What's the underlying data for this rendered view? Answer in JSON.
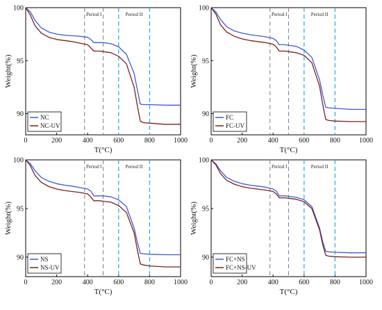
{
  "colors": {
    "blue_series": "#3b5bd6",
    "red_series": "#7a1f1f",
    "period_I_line": "#808080",
    "period_II_line": "#35aee0"
  },
  "chart_data": [
    {
      "type": "line",
      "xlabel": "T(°C)",
      "ylabel": "Weight(%)",
      "xlim": [
        0,
        1000
      ],
      "ylim": [
        88,
        100
      ],
      "xticks": [
        0,
        200,
        400,
        600,
        800,
        1000
      ],
      "yticks": [
        90,
        95,
        100
      ],
      "grid": false,
      "legend_position": "bottom-left",
      "period_labels": [
        "Period I",
        "Period II"
      ],
      "period_I_lines": [
        380,
        500
      ],
      "period_II_lines": [
        600,
        800
      ],
      "series": [
        {
          "name": "NC",
          "color": "blue",
          "x": [
            0,
            30,
            60,
            100,
            150,
            200,
            250,
            300,
            350,
            400,
            420,
            440,
            480,
            500,
            550,
            600,
            650,
            700,
            720,
            740,
            760,
            800,
            900,
            1000
          ],
          "values": [
            100,
            99.6,
            98.8,
            98.1,
            97.7,
            97.5,
            97.4,
            97.35,
            97.3,
            97.2,
            97.0,
            96.7,
            96.7,
            96.7,
            96.6,
            96.3,
            95.6,
            93.8,
            92.3,
            90.9,
            90.85,
            90.85,
            90.8,
            90.8
          ]
        },
        {
          "name": "NC-UV",
          "color": "red",
          "x": [
            0,
            30,
            60,
            100,
            150,
            200,
            250,
            300,
            350,
            400,
            420,
            440,
            480,
            500,
            550,
            600,
            650,
            700,
            720,
            740,
            760,
            800,
            900,
            1000
          ],
          "values": [
            100,
            99.3,
            98.3,
            97.6,
            97.2,
            97.0,
            96.9,
            96.8,
            96.65,
            96.5,
            96.2,
            95.9,
            95.9,
            95.85,
            95.75,
            95.4,
            94.7,
            92.5,
            90.8,
            89.3,
            89.15,
            89.1,
            89.0,
            89.0
          ]
        }
      ]
    },
    {
      "type": "line",
      "xlabel": "T(°C)",
      "ylabel": "Weight(%)",
      "xlim": [
        0,
        1000
      ],
      "ylim": [
        88,
        100
      ],
      "xticks": [
        0,
        200,
        400,
        600,
        800,
        1000
      ],
      "yticks": [
        90,
        95,
        100
      ],
      "grid": false,
      "legend_position": "bottom-left",
      "period_labels": [
        "Period I",
        "Period II"
      ],
      "period_I_lines": [
        380,
        500
      ],
      "period_II_lines": [
        600,
        800
      ],
      "series": [
        {
          "name": "FC",
          "color": "blue",
          "x": [
            0,
            30,
            60,
            100,
            150,
            200,
            250,
            300,
            350,
            400,
            420,
            440,
            480,
            500,
            550,
            600,
            650,
            700,
            720,
            740,
            760,
            800,
            900,
            1000
          ],
          "values": [
            100,
            99.6,
            98.9,
            98.2,
            97.8,
            97.6,
            97.45,
            97.35,
            97.25,
            97.1,
            96.9,
            96.5,
            96.5,
            96.45,
            96.35,
            96.0,
            95.3,
            93.2,
            91.8,
            90.6,
            90.55,
            90.5,
            90.4,
            90.4
          ]
        },
        {
          "name": "FC-UV",
          "color": "red",
          "x": [
            0,
            30,
            60,
            100,
            150,
            200,
            250,
            300,
            350,
            400,
            420,
            440,
            480,
            500,
            550,
            600,
            650,
            700,
            720,
            740,
            760,
            800,
            900,
            1000
          ],
          "values": [
            100,
            99.4,
            98.4,
            97.7,
            97.3,
            97.05,
            96.9,
            96.8,
            96.7,
            96.55,
            96.3,
            95.9,
            95.9,
            95.85,
            95.75,
            95.5,
            94.8,
            92.6,
            90.9,
            89.45,
            89.35,
            89.3,
            89.25,
            89.25
          ]
        }
      ]
    },
    {
      "type": "line",
      "xlabel": "T(°C)",
      "ylabel": "Weight(%)",
      "xlim": [
        0,
        1000
      ],
      "ylim": [
        88,
        100
      ],
      "xticks": [
        0,
        200,
        400,
        600,
        800,
        1000
      ],
      "yticks": [
        90,
        95,
        100
      ],
      "grid": false,
      "legend_position": "bottom-left",
      "period_labels": [
        "Period I",
        "Period II"
      ],
      "period_I_lines": [
        380,
        500
      ],
      "period_II_lines": [
        600,
        800
      ],
      "series": [
        {
          "name": "NS",
          "color": "blue",
          "x": [
            0,
            30,
            60,
            100,
            150,
            200,
            250,
            300,
            350,
            400,
            420,
            440,
            480,
            500,
            550,
            600,
            650,
            700,
            720,
            740,
            760,
            800,
            900,
            1000
          ],
          "values": [
            100,
            99.6,
            98.9,
            98.2,
            97.8,
            97.55,
            97.4,
            97.3,
            97.15,
            97.0,
            96.8,
            96.3,
            96.3,
            96.3,
            96.2,
            95.9,
            95.2,
            93.0,
            91.6,
            90.4,
            90.35,
            90.3,
            90.25,
            90.25
          ]
        },
        {
          "name": "NS-UV",
          "color": "red",
          "x": [
            0,
            30,
            60,
            100,
            150,
            200,
            250,
            300,
            350,
            400,
            420,
            440,
            480,
            500,
            550,
            600,
            650,
            700,
            720,
            740,
            760,
            800,
            900,
            1000
          ],
          "values": [
            100,
            99.4,
            98.4,
            97.7,
            97.25,
            97.0,
            96.85,
            96.75,
            96.65,
            96.5,
            96.2,
            95.8,
            95.8,
            95.75,
            95.65,
            95.3,
            94.6,
            92.5,
            90.8,
            89.3,
            89.2,
            89.1,
            89.0,
            89.0
          ]
        }
      ]
    },
    {
      "type": "line",
      "xlabel": "T(°C)",
      "ylabel": "Weight(%)",
      "xlim": [
        0,
        1000
      ],
      "ylim": [
        88,
        100
      ],
      "xticks": [
        0,
        200,
        400,
        600,
        800,
        1000
      ],
      "yticks": [
        90,
        95,
        100
      ],
      "grid": false,
      "legend_position": "bottom-left",
      "period_labels": [
        "Period I",
        "Period II"
      ],
      "period_I_lines": [
        380,
        500
      ],
      "period_II_lines": [
        600,
        800
      ],
      "series": [
        {
          "name": "FC+NS",
          "color": "blue",
          "x": [
            0,
            30,
            60,
            100,
            150,
            200,
            250,
            300,
            350,
            400,
            420,
            440,
            480,
            500,
            550,
            600,
            650,
            700,
            720,
            740,
            760,
            800,
            900,
            1000
          ],
          "values": [
            100,
            99.6,
            98.9,
            98.2,
            97.8,
            97.55,
            97.4,
            97.3,
            97.2,
            97.0,
            96.8,
            96.3,
            96.3,
            96.25,
            96.15,
            95.9,
            95.2,
            93.0,
            91.6,
            90.6,
            90.55,
            90.5,
            90.45,
            90.45
          ]
        },
        {
          "name": "FC+NS-UV",
          "color": "red",
          "x": [
            0,
            30,
            60,
            100,
            150,
            200,
            250,
            300,
            350,
            400,
            420,
            440,
            480,
            500,
            550,
            600,
            650,
            700,
            720,
            740,
            760,
            800,
            900,
            1000
          ],
          "values": [
            100,
            99.5,
            98.6,
            97.9,
            97.5,
            97.25,
            97.1,
            97.0,
            96.9,
            96.75,
            96.5,
            96.1,
            96.1,
            96.05,
            95.95,
            95.7,
            95.0,
            92.8,
            91.3,
            90.2,
            90.1,
            90.05,
            90.0,
            90.0
          ]
        }
      ]
    }
  ]
}
